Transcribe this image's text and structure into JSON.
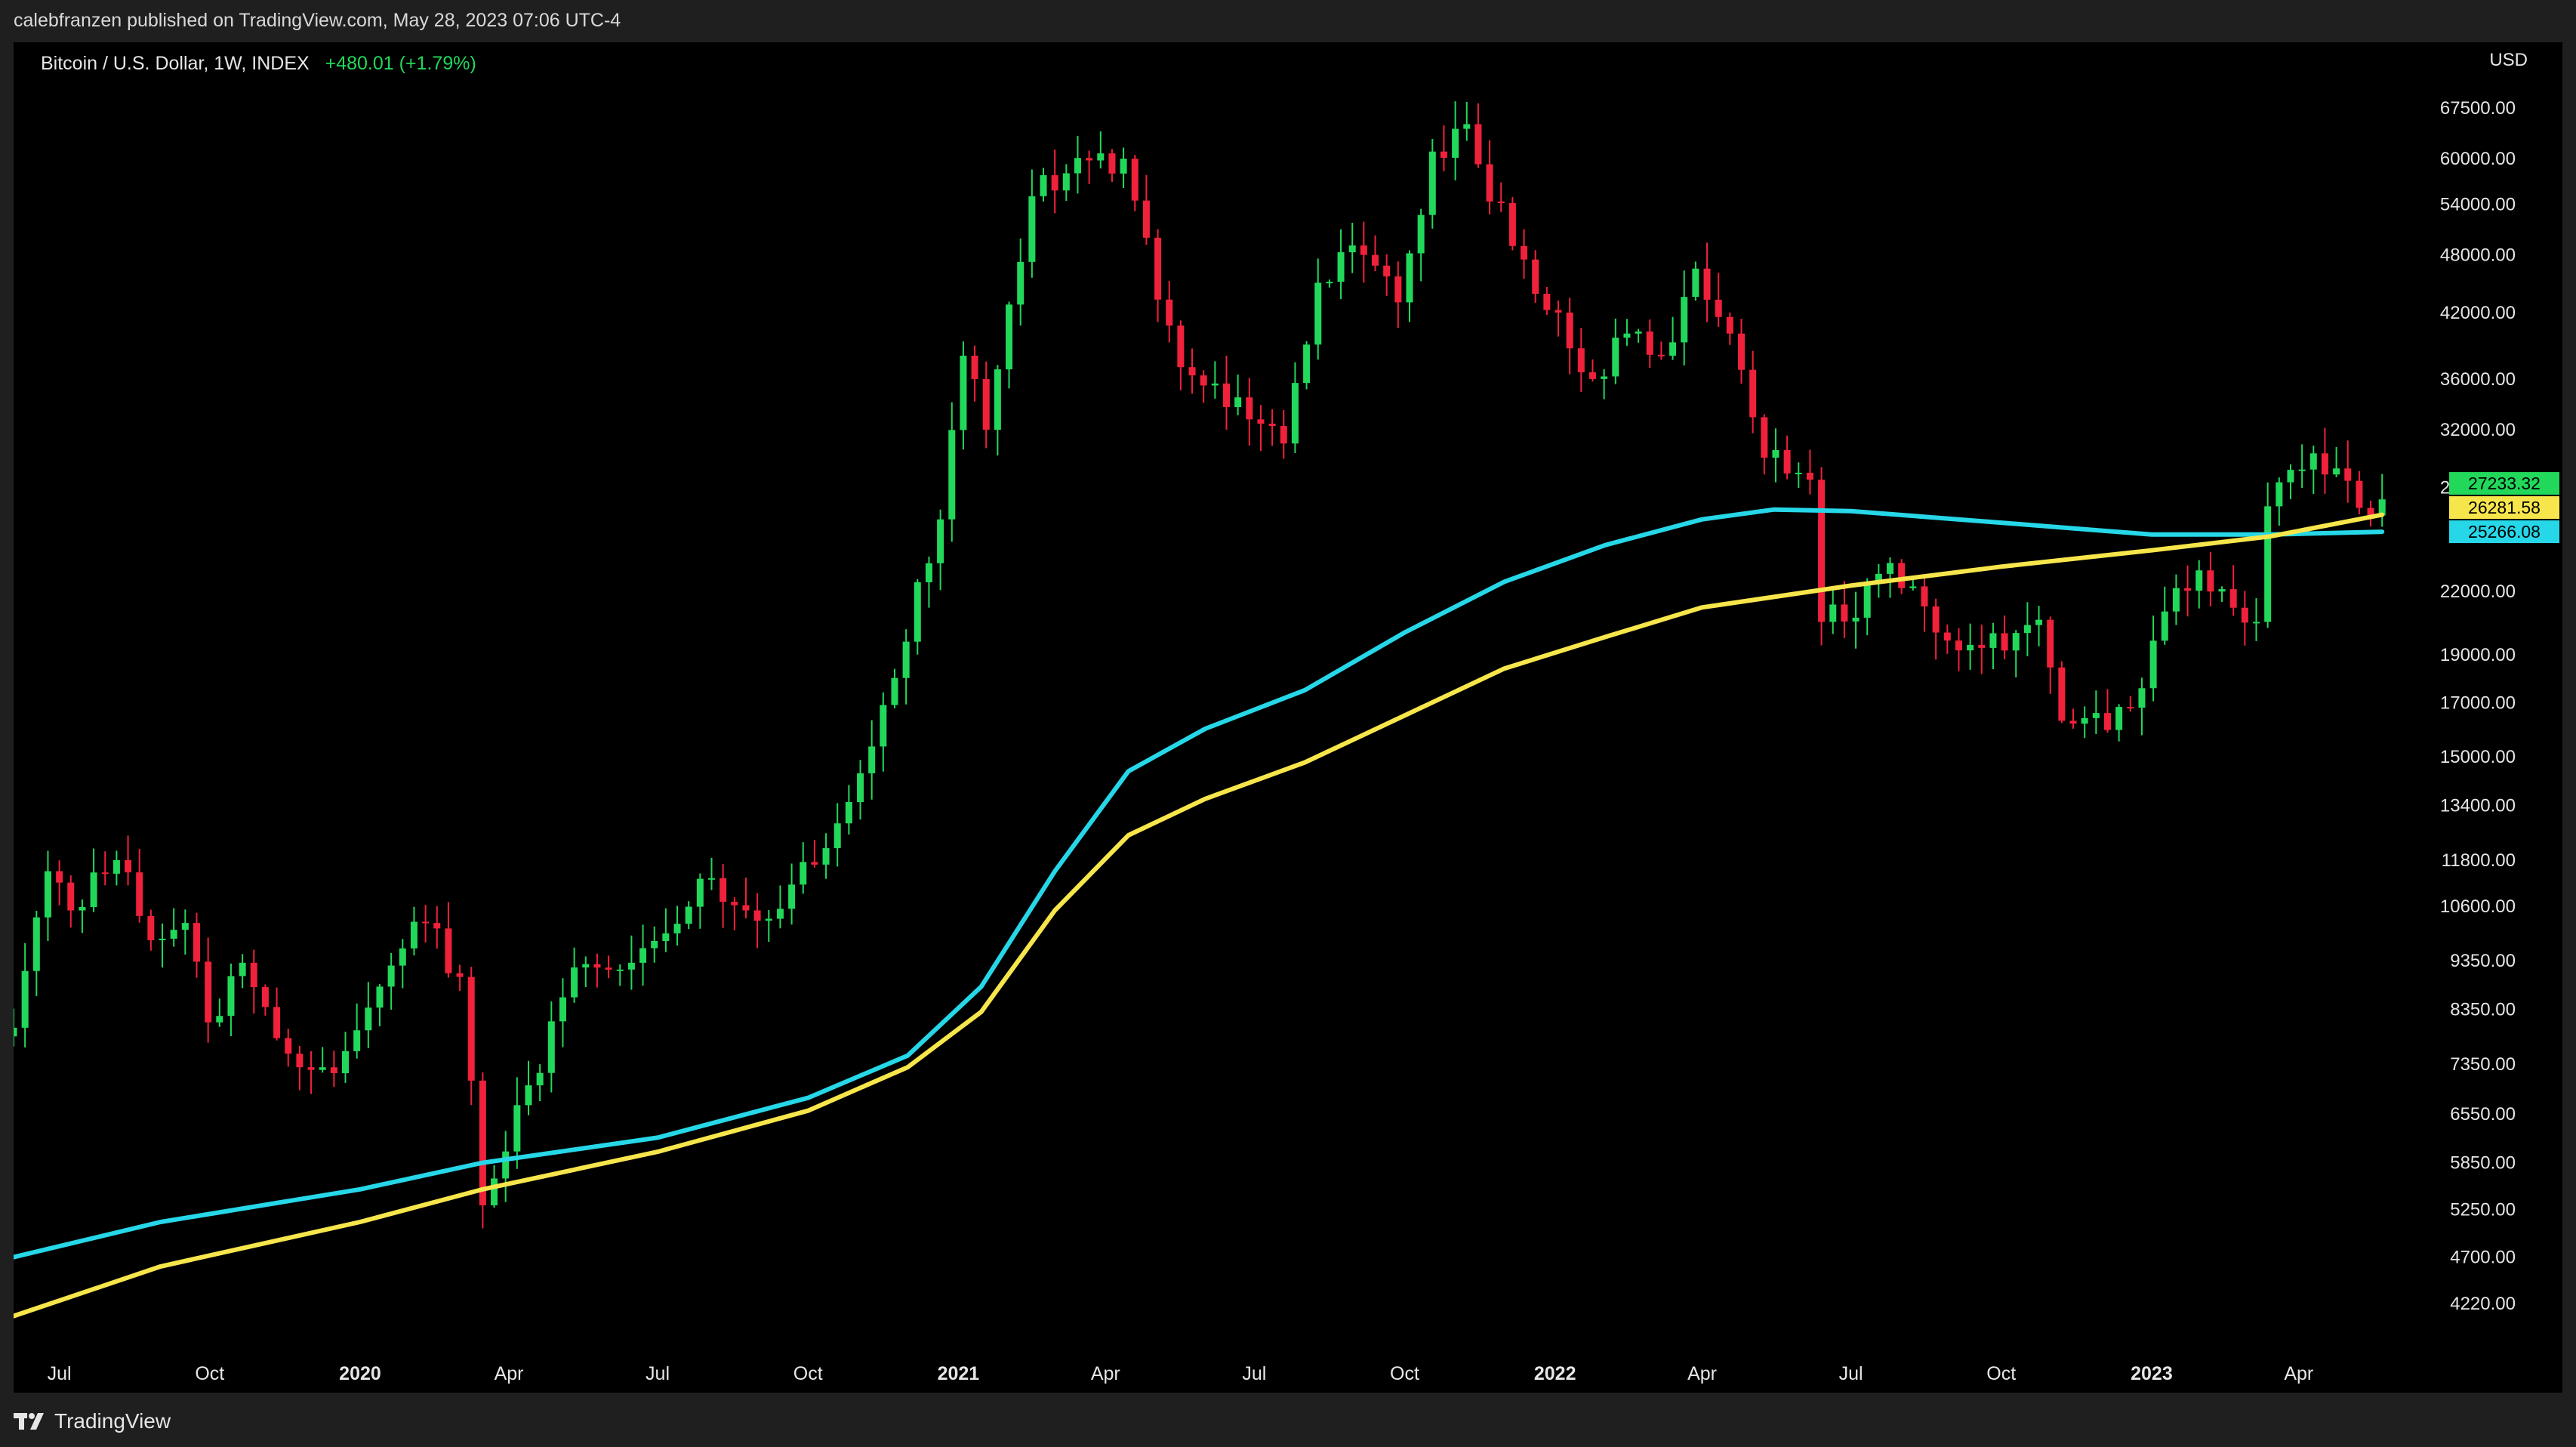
{
  "publish_info": "calebfranzen published on TradingView.com, May 28, 2023 07:06 UTC-4",
  "footer": {
    "brand": "TradingView",
    "logo_icon": "tradingview-logo-icon"
  },
  "symbol": {
    "name": "Bitcoin / U.S. Dollar, 1W, INDEX",
    "change": "+480.01 (+1.79%)"
  },
  "currency": "USD",
  "colors": {
    "up": "#22d85b",
    "down": "#f0213a",
    "ma_yellow": "#f7e64b",
    "ma_cyan": "#26d7e8",
    "background": "#000000"
  },
  "chart_data": {
    "type": "candlestick",
    "title": "Bitcoin / U.S. Dollar, 1W, INDEX",
    "y_scale": "log",
    "ylim": [
      3800,
      72000
    ],
    "y_ticks": [
      67500,
      60000,
      54000,
      48000,
      42000,
      36000,
      32000,
      28000,
      22000,
      19000,
      17000,
      15000,
      13400,
      11800,
      10600,
      9350,
      8350,
      7350,
      6550,
      5850,
      5250,
      4700,
      4220
    ],
    "y_tick_labels": [
      "67500.00",
      "60000.00",
      "54000.00",
      "48000.00",
      "42000.00",
      "36000.00",
      "32000.00",
      "28000.00",
      "22000.00",
      "19000.00",
      "17000.00",
      "15000.00",
      "13400.00",
      "11800.00",
      "10600.00",
      "9350.00",
      "8350.00",
      "7350.00",
      "6550.00",
      "5850.00",
      "5250.00",
      "4700.00",
      "4220.00"
    ],
    "x_range": [
      "2019-06-03",
      "2023-06-20"
    ],
    "x_ticks": [
      {
        "date": "2019-07-01",
        "label": "Jul",
        "bold": false
      },
      {
        "date": "2019-10-01",
        "label": "Oct",
        "bold": false
      },
      {
        "date": "2020-01-01",
        "label": "2020",
        "bold": true
      },
      {
        "date": "2020-04-01",
        "label": "Apr",
        "bold": false
      },
      {
        "date": "2020-07-01",
        "label": "Jul",
        "bold": false
      },
      {
        "date": "2020-10-01",
        "label": "Oct",
        "bold": false
      },
      {
        "date": "2021-01-01",
        "label": "2021",
        "bold": true
      },
      {
        "date": "2021-04-01",
        "label": "Apr",
        "bold": false
      },
      {
        "date": "2021-07-01",
        "label": "Jul",
        "bold": false
      },
      {
        "date": "2021-10-01",
        "label": "Oct",
        "bold": false
      },
      {
        "date": "2022-01-01",
        "label": "2022",
        "bold": true
      },
      {
        "date": "2022-04-01",
        "label": "Apr",
        "bold": false
      },
      {
        "date": "2022-07-01",
        "label": "Jul",
        "bold": false
      },
      {
        "date": "2022-10-01",
        "label": "Oct",
        "bold": false
      },
      {
        "date": "2023-01-01",
        "label": "2023",
        "bold": true
      },
      {
        "date": "2023-04-01",
        "label": "Apr",
        "bold": false
      }
    ],
    "price_key_closes": [
      [
        "2019-06-03",
        8000
      ],
      [
        "2019-06-24",
        11500
      ],
      [
        "2019-07-08",
        10500
      ],
      [
        "2019-08-05",
        11800
      ],
      [
        "2019-08-26",
        9800
      ],
      [
        "2019-09-16",
        10200
      ],
      [
        "2019-09-30",
        8100
      ],
      [
        "2019-10-21",
        9300
      ],
      [
        "2019-11-25",
        7300
      ],
      [
        "2019-12-16",
        7200
      ],
      [
        "2020-01-13",
        8800
      ],
      [
        "2020-02-10",
        10200
      ],
      [
        "2020-03-02",
        9000
      ],
      [
        "2020-03-16",
        5300
      ],
      [
        "2020-04-13",
        7000
      ],
      [
        "2020-05-11",
        9200
      ],
      [
        "2020-06-15",
        9300
      ],
      [
        "2020-07-27",
        11300
      ],
      [
        "2020-09-07",
        10300
      ],
      [
        "2020-10-26",
        13500
      ],
      [
        "2020-11-23",
        18000
      ],
      [
        "2020-12-21",
        26000
      ],
      [
        "2021-01-04",
        38000
      ],
      [
        "2021-01-18",
        32000
      ],
      [
        "2021-02-15",
        55000
      ],
      [
        "2021-03-08",
        58000
      ],
      [
        "2021-04-12",
        60000
      ],
      [
        "2021-05-17",
        37000
      ],
      [
        "2021-06-21",
        34500
      ],
      [
        "2021-07-19",
        31000
      ],
      [
        "2021-08-09",
        45000
      ],
      [
        "2021-09-06",
        48000
      ],
      [
        "2021-09-27",
        43000
      ],
      [
        "2021-10-18",
        61000
      ],
      [
        "2021-11-08",
        65000
      ],
      [
        "2021-12-06",
        49000
      ],
      [
        "2022-01-03",
        42000
      ],
      [
        "2022-01-24",
        36000
      ],
      [
        "2022-02-14",
        40000
      ],
      [
        "2022-03-07",
        38000
      ],
      [
        "2022-03-28",
        46500
      ],
      [
        "2022-04-18",
        40000
      ],
      [
        "2022-05-09",
        30000
      ],
      [
        "2022-06-06",
        28500
      ],
      [
        "2022-06-13",
        20500
      ],
      [
        "2022-07-04",
        20700
      ],
      [
        "2022-07-25",
        23500
      ],
      [
        "2022-08-22",
        20000
      ],
      [
        "2022-09-19",
        19300
      ],
      [
        "2022-10-24",
        20600
      ],
      [
        "2022-11-07",
        16300
      ],
      [
        "2022-11-21",
        16400
      ],
      [
        "2022-12-19",
        16800
      ],
      [
        "2023-01-09",
        21000
      ],
      [
        "2023-01-30",
        23100
      ],
      [
        "2023-03-06",
        20500
      ],
      [
        "2023-03-13",
        26800
      ],
      [
        "2023-04-10",
        30300
      ],
      [
        "2023-05-08",
        26700
      ],
      [
        "2023-05-22",
        27233
      ]
    ],
    "series": [
      {
        "name": "",
        "color": "#26d7e8",
        "points": [
          [
            "2019-06-03",
            4700
          ],
          [
            "2019-09-01",
            5100
          ],
          [
            "2020-01-01",
            5500
          ],
          [
            "2020-03-16",
            5850
          ],
          [
            "2020-07-01",
            6200
          ],
          [
            "2020-10-01",
            6800
          ],
          [
            "2020-12-01",
            7500
          ],
          [
            "2021-01-15",
            8800
          ],
          [
            "2021-03-01",
            11500
          ],
          [
            "2021-04-15",
            14500
          ],
          [
            "2021-06-01",
            16000
          ],
          [
            "2021-08-01",
            17500
          ],
          [
            "2021-10-01",
            20000
          ],
          [
            "2021-12-01",
            22500
          ],
          [
            "2022-02-01",
            24500
          ],
          [
            "2022-04-01",
            26000
          ],
          [
            "2022-05-15",
            26600
          ],
          [
            "2022-07-01",
            26500
          ],
          [
            "2022-10-01",
            25800
          ],
          [
            "2023-01-01",
            25100
          ],
          [
            "2023-03-15",
            25100
          ],
          [
            "2023-05-22",
            25266
          ]
        ]
      },
      {
        "name": "",
        "color": "#f7e64b",
        "points": [
          [
            "2019-06-03",
            4100
          ],
          [
            "2019-09-01",
            4600
          ],
          [
            "2020-01-01",
            5100
          ],
          [
            "2020-03-16",
            5500
          ],
          [
            "2020-07-01",
            6000
          ],
          [
            "2020-10-01",
            6600
          ],
          [
            "2020-12-01",
            7300
          ],
          [
            "2021-01-15",
            8300
          ],
          [
            "2021-03-01",
            10500
          ],
          [
            "2021-04-15",
            12500
          ],
          [
            "2021-06-01",
            13600
          ],
          [
            "2021-08-01",
            14800
          ],
          [
            "2021-10-01",
            16500
          ],
          [
            "2021-12-01",
            18400
          ],
          [
            "2022-02-01",
            19800
          ],
          [
            "2022-04-01",
            21200
          ],
          [
            "2022-07-01",
            22300
          ],
          [
            "2022-10-01",
            23300
          ],
          [
            "2023-01-01",
            24200
          ],
          [
            "2023-03-15",
            25000
          ],
          [
            "2023-05-22",
            26281
          ]
        ]
      }
    ],
    "price_labels": [
      {
        "value": 27233.32,
        "text": "27233.32",
        "bg": "#22d85b"
      },
      {
        "value": 26281.58,
        "text": "26281.58",
        "bg": "#f7e64b"
      },
      {
        "value": 25266.08,
        "text": "25266.08",
        "bg": "#26d7e8"
      }
    ]
  }
}
